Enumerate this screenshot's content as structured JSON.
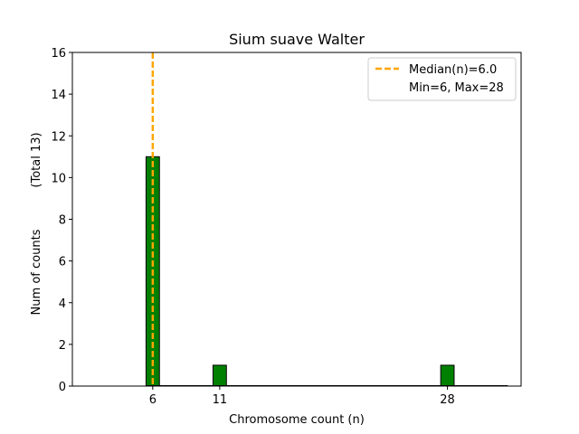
{
  "chart_data": {
    "type": "bar",
    "title": "Sium suave Walter",
    "xlabel": "Chromosome count (n)",
    "ylabel": "Num of counts",
    "ylabel_secondary": "(Total 13)",
    "bar_color": "#008000",
    "bar_edge_color": "#000000",
    "x_ticks": [
      6,
      11,
      28
    ],
    "x_tick_labels": [
      "6",
      "11",
      "28"
    ],
    "xlim": [
      0,
      33.5
    ],
    "ylim": [
      0,
      16
    ],
    "y_ticks": [
      0,
      2,
      4,
      6,
      8,
      10,
      12,
      14,
      16
    ],
    "y_tick_labels": [
      "0",
      "2",
      "4",
      "6",
      "8",
      "10",
      "12",
      "14",
      "16"
    ],
    "bars": [
      {
        "x": 6,
        "value": 11
      },
      {
        "x": 11,
        "value": 1
      },
      {
        "x": 28,
        "value": 1
      }
    ],
    "bar_width": 1,
    "median": {
      "value": 6.0,
      "color": "#FFA500",
      "style": "dashed"
    },
    "legend": {
      "position": "top-right",
      "entries": [
        "Median(n)=6.0",
        "Min=6, Max=28"
      ]
    }
  }
}
